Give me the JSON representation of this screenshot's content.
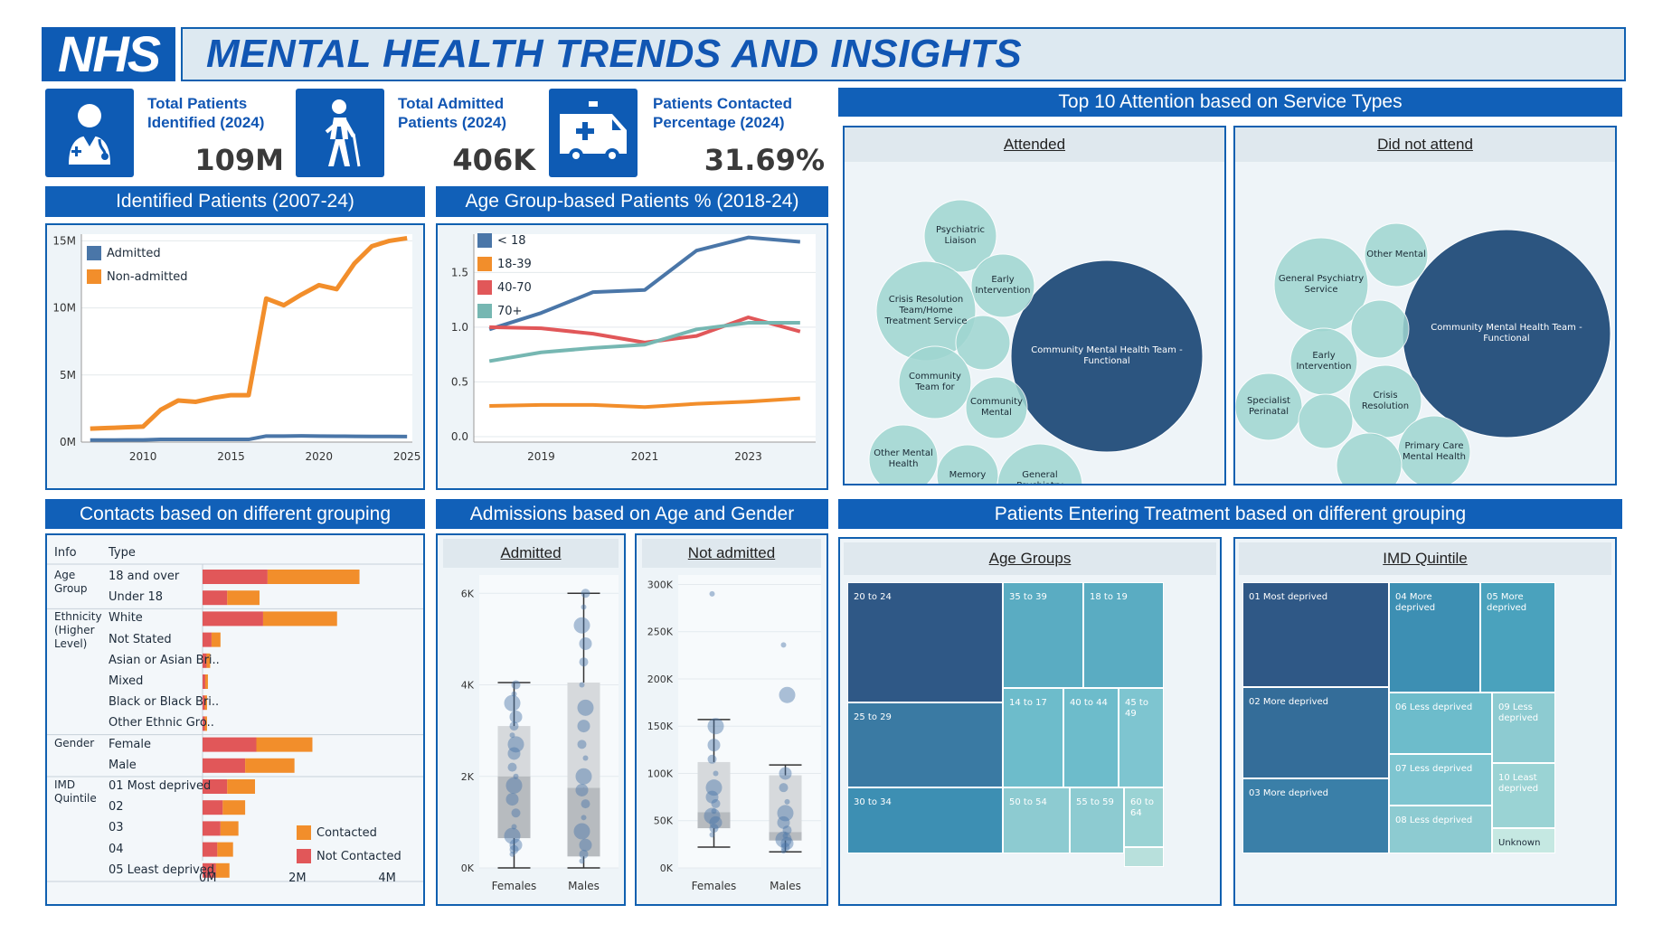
{
  "header": {
    "logo": "NHS",
    "title": "MENTAL HEALTH TRENDS AND INSIGHTS"
  },
  "kpis": [
    {
      "label_line1": "Total Patients",
      "label_line2": "Identified (2024)",
      "value": "109M",
      "icon": "doctor-icon"
    },
    {
      "label_line1": "Total Admitted",
      "label_line2": "Patients (2024)",
      "value": "406K",
      "icon": "injured-patient-icon"
    },
    {
      "label_line1": "Patients Contacted",
      "label_line2": "Percentage (2024)",
      "value": "31.69%",
      "icon": "ambulance-icon"
    }
  ],
  "colors": {
    "blue": "#4a76a8",
    "orange": "#f28e2b",
    "red": "#e15759",
    "teal": "#76b7b2",
    "nhs_blue": "#1160b8"
  },
  "identified": {
    "title": "Identified Patients (2007-24)",
    "legend": [
      "Admitted",
      "Non-admitted"
    ],
    "x_ticks": [
      "2010",
      "2015",
      "2020",
      "2025"
    ],
    "y_ticks": [
      "0M",
      "5M",
      "10M",
      "15M"
    ],
    "chart_data": {
      "type": "line",
      "x": [
        2007,
        2008,
        2009,
        2010,
        2011,
        2012,
        2013,
        2014,
        2015,
        2016,
        2017,
        2018,
        2019,
        2020,
        2021,
        2022,
        2023,
        2024,
        2025
      ],
      "series": [
        {
          "name": "Admitted",
          "values": [
            0.15,
            0.15,
            0.16,
            0.16,
            0.2,
            0.2,
            0.2,
            0.2,
            0.2,
            0.2,
            0.45,
            0.45,
            0.46,
            0.45,
            0.44,
            0.43,
            0.42,
            0.42,
            0.41
          ]
        },
        {
          "name": "Non-admitted",
          "values": [
            1.0,
            1.05,
            1.1,
            1.15,
            2.4,
            3.1,
            3.0,
            3.3,
            3.5,
            3.5,
            10.7,
            10.2,
            11.0,
            11.7,
            11.4,
            13.3,
            14.6,
            15.0,
            15.2
          ]
        }
      ],
      "ylim": [
        0,
        15.5
      ],
      "xlim": [
        2006.5,
        2025.3
      ]
    }
  },
  "agegroup": {
    "title": "Age Group-based Patients % (2018-24)",
    "legend": [
      "< 18",
      "18-39",
      "40-70",
      "70+"
    ],
    "x_ticks": [
      "2019",
      "2021",
      "2023"
    ],
    "y_ticks": [
      "0.0",
      "0.5",
      "1.0",
      "1.5"
    ],
    "chart_data": {
      "type": "line",
      "x": [
        2018,
        2019,
        2020,
        2021,
        2022,
        2023,
        2024
      ],
      "series": [
        {
          "name": "< 18",
          "values": [
            0.98,
            1.13,
            1.32,
            1.34,
            1.7,
            1.82,
            1.78
          ]
        },
        {
          "name": "18-39",
          "values": [
            0.28,
            0.29,
            0.29,
            0.27,
            0.3,
            0.32,
            0.35
          ]
        },
        {
          "name": "40-70",
          "values": [
            1.0,
            0.99,
            0.94,
            0.86,
            0.92,
            1.09,
            0.96
          ]
        },
        {
          "name": "70+",
          "values": [
            0.69,
            0.77,
            0.81,
            0.84,
            0.98,
            1.04,
            1.04
          ]
        }
      ],
      "ylim": [
        -0.05,
        1.85
      ],
      "xlim": [
        2017.7,
        2024.3
      ]
    }
  },
  "service": {
    "title": "Top 10 Attention based on Service Types",
    "attended_head": "Attended",
    "not_attended_head": "Did not attend",
    "attended": [
      {
        "label": "Community Mental Health Team - Functional",
        "x": 290,
        "y": 215,
        "r": 106,
        "dark": true
      },
      {
        "label": "Psychiatric Liaison",
        "x": 128,
        "y": 82,
        "r": 40
      },
      {
        "label": "Early Intervention",
        "x": 175,
        "y": 137,
        "r": 35
      },
      {
        "label": "Crisis Resolution Team/Home Treatment Service",
        "x": 90,
        "y": 165,
        "r": 55
      },
      {
        "label": "",
        "x": 153,
        "y": 200,
        "r": 30
      },
      {
        "label": "Community Team for",
        "x": 100,
        "y": 244,
        "r": 40
      },
      {
        "label": "Community Mental",
        "x": 168,
        "y": 272,
        "r": 34
      },
      {
        "label": "Other Mental Health",
        "x": 65,
        "y": 329,
        "r": 38
      },
      {
        "label": "Memory",
        "x": 136,
        "y": 347,
        "r": 34
      },
      {
        "label": "General Psychiatry Service",
        "x": 216,
        "y": 359,
        "r": 47
      }
    ],
    "not_attended": [
      {
        "label": "Community Mental Health Team - Functional",
        "x": 300,
        "y": 190,
        "r": 115,
        "dark": true
      },
      {
        "label": "General Psychiatry Service",
        "x": 95,
        "y": 136,
        "r": 52
      },
      {
        "label": "Other Mental",
        "x": 178,
        "y": 103,
        "r": 35
      },
      {
        "label": "",
        "x": 160,
        "y": 185,
        "r": 32
      },
      {
        "label": "Early Intervention",
        "x": 98,
        "y": 221,
        "r": 37
      },
      {
        "label": "Specialist Perinatal",
        "x": 37,
        "y": 271,
        "r": 37
      },
      {
        "label": "Crisis Resolution",
        "x": 166,
        "y": 265,
        "r": 40
      },
      {
        "label": "",
        "x": 100,
        "y": 287,
        "r": 30
      },
      {
        "label": "Primary Care Mental Health",
        "x": 220,
        "y": 321,
        "r": 40
      },
      {
        "label": "",
        "x": 148,
        "y": 336,
        "r": 36
      }
    ]
  },
  "contacts": {
    "title": "Contacts based on different grouping",
    "col_info": "Info",
    "col_type": "Type",
    "groups": [
      {
        "name": "Age Group",
        "rows": [
          {
            "type": "18 and over",
            "not_contacted": 1.45,
            "contacted": 2.05
          },
          {
            "type": "Under 18",
            "not_contacted": 0.55,
            "contacted": 0.72
          }
        ]
      },
      {
        "name": "Ethnicity (Higher Level)",
        "rows": [
          {
            "type": "White",
            "not_contacted": 1.35,
            "contacted": 1.65
          },
          {
            "type": "Not Stated",
            "not_contacted": 0.2,
            "contacted": 0.2
          },
          {
            "type": "Asian or Asian Bri..",
            "not_contacted": 0.09,
            "contacted": 0.08
          },
          {
            "type": "Mixed",
            "not_contacted": 0.06,
            "contacted": 0.06
          },
          {
            "type": "Black or Black Bri..",
            "not_contacted": 0.05,
            "contacted": 0.05
          },
          {
            "type": "Other Ethnic Gro..",
            "not_contacted": 0.05,
            "contacted": 0.05
          }
        ]
      },
      {
        "name": "Gender",
        "rows": [
          {
            "type": "Female",
            "not_contacted": 1.2,
            "contacted": 1.25
          },
          {
            "type": "Male",
            "not_contacted": 0.95,
            "contacted": 1.1
          }
        ]
      },
      {
        "name": "IMD Quintile",
        "rows": [
          {
            "type": "01 Most deprived",
            "not_contacted": 0.55,
            "contacted": 0.62
          },
          {
            "type": "02",
            "not_contacted": 0.45,
            "contacted": 0.5
          },
          {
            "type": "03",
            "not_contacted": 0.4,
            "contacted": 0.4
          },
          {
            "type": "04",
            "not_contacted": 0.33,
            "contacted": 0.35
          },
          {
            "type": "05 Least deprived",
            "not_contacted": 0.3,
            "contacted": 0.3
          }
        ]
      }
    ],
    "legend": [
      "Contacted",
      "Not Contacted"
    ],
    "x_ticks": [
      "0M",
      "2M",
      "4M"
    ],
    "xlim": [
      0,
      4.8
    ]
  },
  "admissions": {
    "title": "Admissions based on Age and Gender",
    "admitted_head": "Admitted",
    "not_admitted_head": "Not admitted",
    "categories": [
      "Females",
      "Males"
    ],
    "admitted_y_ticks": [
      "0K",
      "2K",
      "4K",
      "6K"
    ],
    "not_admitted_y_ticks": [
      "0K",
      "50K",
      "100K",
      "150K",
      "200K",
      "250K",
      "300K"
    ],
    "chart_data": [
      {
        "type": "box",
        "name": "Admitted",
        "ylim": [
          0,
          6400
        ],
        "boxes": [
          {
            "category": "Females",
            "min": 0,
            "q1": 650,
            "median": 2000,
            "q3": 3100,
            "max": 4050,
            "points": [
              300,
              400,
              500,
              700,
              900,
              1200,
              1500,
              1800,
              2000,
              2200,
              2500,
              2700,
              2900,
              3100,
              3300,
              3600,
              3800,
              4000
            ]
          },
          {
            "category": "Males",
            "min": 0,
            "q1": 250,
            "median": 1750,
            "q3": 4050,
            "max": 6000,
            "points": [
              150,
              300,
              500,
              800,
              1100,
              1400,
              1700,
              2000,
              2400,
              2700,
              3100,
              3500,
              4000,
              4500,
              4900,
              5300,
              5700,
              6000
            ]
          }
        ]
      },
      {
        "type": "box",
        "name": "Not admitted",
        "ylim": [
          0,
          310000
        ],
        "boxes": [
          {
            "category": "Females",
            "min": 22000,
            "q1": 42000,
            "median": 59000,
            "q3": 112000,
            "max": 157000,
            "points": [
              35000,
              42000,
              48000,
              55000,
              60000,
              68000,
              75000,
              85000,
              100000,
              115000,
              130000,
              150000,
              290000
            ]
          },
          {
            "category": "Males",
            "min": 17000,
            "q1": 29000,
            "median": 38000,
            "q3": 98000,
            "max": 109000,
            "points": [
              18000,
              22000,
              26000,
              30000,
              34000,
              40000,
              48000,
              58000,
              70000,
              85000,
              100000,
              183000,
              236000
            ]
          }
        ]
      }
    ]
  },
  "entering": {
    "title": "Patients Entering Treatment based on different grouping",
    "age_head": "Age Groups",
    "imd_head": "IMD Quintile",
    "chart_data": [
      {
        "type": "treemap",
        "name": "Age Groups",
        "items": [
          {
            "label": "20 to 24",
            "x": 0,
            "y": 0,
            "w": 172,
            "h": 133,
            "color": "#2f5886"
          },
          {
            "label": "35 to 39",
            "x": 172,
            "y": 0,
            "w": 89,
            "h": 117,
            "color": "#5aacc2"
          },
          {
            "label": "18 to 19",
            "x": 261,
            "y": 0,
            "w": 89,
            "h": 117,
            "color": "#5aacc2"
          },
          {
            "label": "25 to 29",
            "x": 0,
            "y": 133,
            "w": 172,
            "h": 94,
            "color": "#3a7aa3"
          },
          {
            "label": "14 to 17",
            "x": 172,
            "y": 117,
            "w": 67,
            "h": 110,
            "color": "#6dbccb"
          },
          {
            "label": "40 to 44",
            "x": 239,
            "y": 117,
            "w": 61,
            "h": 110,
            "color": "#6dbccb"
          },
          {
            "label": "45 to 49",
            "x": 300,
            "y": 117,
            "w": 50,
            "h": 110,
            "color": "#7ec5d0"
          },
          {
            "label": "30 to 34",
            "x": 0,
            "y": 227,
            "w": 172,
            "h": 73,
            "color": "#3d8fb3"
          },
          {
            "label": "50 to 54",
            "x": 172,
            "y": 227,
            "w": 74,
            "h": 73,
            "color": "#8dcbd1"
          },
          {
            "label": "55 to 59",
            "x": 246,
            "y": 227,
            "w": 60,
            "h": 73,
            "color": "#8dcbd1"
          },
          {
            "label": "60 to 64",
            "x": 306,
            "y": 227,
            "w": 44,
            "h": 66,
            "color": "#9ad3d4"
          },
          {
            "label": "",
            "x": 306,
            "y": 293,
            "w": 44,
            "h": 7,
            "color": "#b8e0dc"
          }
        ]
      },
      {
        "type": "treemap",
        "name": "IMD Quintile",
        "items": [
          {
            "label": "01 Most deprived",
            "x": 0,
            "y": 0,
            "w": 162,
            "h": 116,
            "color": "#2f5886"
          },
          {
            "label": "04 More deprived",
            "x": 162,
            "y": 0,
            "w": 101,
            "h": 122,
            "color": "#3d8fb3"
          },
          {
            "label": "05 More deprived",
            "x": 263,
            "y": 0,
            "w": 83,
            "h": 122,
            "color": "#4aa2bd"
          },
          {
            "label": "02 More deprived",
            "x": 0,
            "y": 116,
            "w": 162,
            "h": 101,
            "color": "#346d99"
          },
          {
            "label": "06 Less deprived",
            "x": 162,
            "y": 122,
            "w": 114,
            "h": 68,
            "color": "#6dbccb"
          },
          {
            "label": "09 Less deprived",
            "x": 276,
            "y": 122,
            "w": 70,
            "h": 78,
            "color": "#8dcbd1"
          },
          {
            "label": "03 More deprived",
            "x": 0,
            "y": 217,
            "w": 162,
            "h": 83,
            "color": "#3a7fa8"
          },
          {
            "label": "07 Less deprived",
            "x": 162,
            "y": 190,
            "w": 114,
            "h": 57,
            "color": "#7ec5d0"
          },
          {
            "label": "10 Least deprived",
            "x": 276,
            "y": 200,
            "w": 70,
            "h": 72,
            "color": "#9ad3d4"
          },
          {
            "label": "08 Less deprived",
            "x": 162,
            "y": 247,
            "w": 114,
            "h": 53,
            "color": "#8dcbd1"
          },
          {
            "label": "Unknown",
            "x": 276,
            "y": 272,
            "w": 70,
            "h": 28,
            "color": "#c5e8e2"
          }
        ]
      }
    ]
  }
}
